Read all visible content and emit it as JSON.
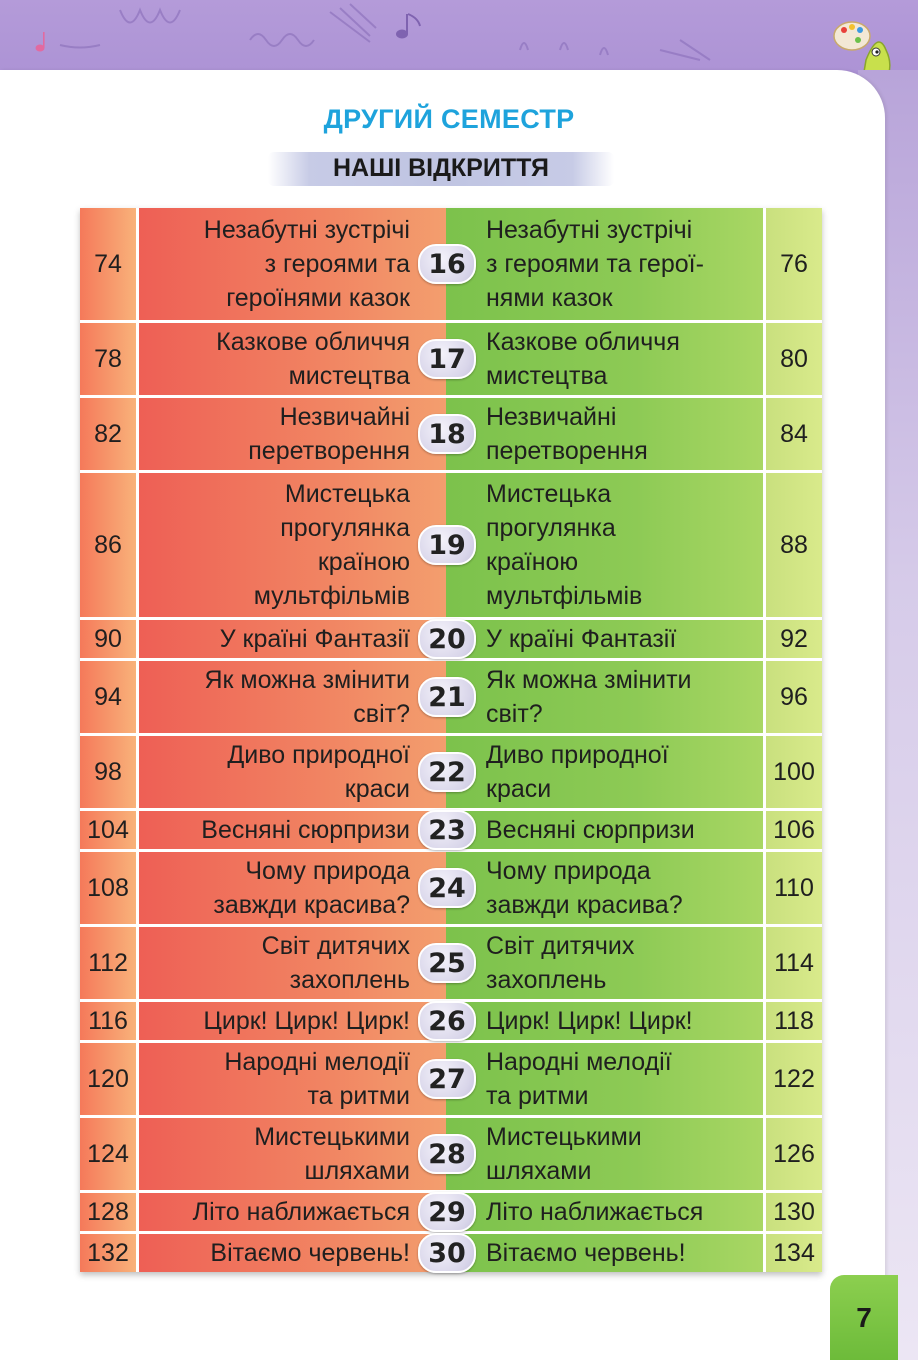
{
  "header": {
    "semester": "ДРУГИЙ СЕМЕСТР",
    "section": "НАШІ ВІДКРИТТЯ"
  },
  "rows": [
    {
      "left_page": "74",
      "left_title": "Незабутні зустрічі\nз героями та\nгероїнями казок",
      "num": "16",
      "right_title": "Незабутні зустрічі\nз героями та герої-\nнями казок",
      "right_page": "76"
    },
    {
      "left_page": "78",
      "left_title": "Казкове обличчя\nмистецтва",
      "num": "17",
      "right_title": "Казкове обличчя\nмистецтва",
      "right_page": "80"
    },
    {
      "left_page": "82",
      "left_title": "Незвичайні\nперетворення",
      "num": "18",
      "right_title": "Незвичайні\nперетворення",
      "right_page": "84"
    },
    {
      "left_page": "86",
      "left_title": "Мистецька\nпрогулянка\nкраїною\nмультфільмів",
      "num": "19",
      "right_title": "Мистецька\nпрогулянка\nкраїною\nмультфільмів",
      "right_page": "88"
    },
    {
      "left_page": "90",
      "left_title": "У країні Фантазії",
      "num": "20",
      "right_title": "У країні Фантазії",
      "right_page": "92"
    },
    {
      "left_page": "94",
      "left_title": "Як можна змінити\nсвіт?",
      "num": "21",
      "right_title": "Як можна змінити\nсвіт?",
      "right_page": "96"
    },
    {
      "left_page": "98",
      "left_title": "Диво природної\nкраси",
      "num": "22",
      "right_title": "Диво природної\nкраси",
      "right_page": "100"
    },
    {
      "left_page": "104",
      "left_title": "Весняні сюрпризи",
      "num": "23",
      "right_title": "Весняні сюрпризи",
      "right_page": "106"
    },
    {
      "left_page": "108",
      "left_title": "Чому природа\nзавжди красива?",
      "num": "24",
      "right_title": "Чому природа\nзавжди красива?",
      "right_page": "110"
    },
    {
      "left_page": "112",
      "left_title": "Світ дитячих\nзахоплень",
      "num": "25",
      "right_title": "Світ дитячих\nзахоплень",
      "right_page": "114"
    },
    {
      "left_page": "116",
      "left_title": "Цирк! Цирк! Цирк!",
      "num": "26",
      "right_title": "Цирк! Цирк! Цирк!",
      "right_page": "118"
    },
    {
      "left_page": "120",
      "left_title": "Народні мелодії\nта ритми",
      "num": "27",
      "right_title": "Народні мелодії\nта ритми",
      "right_page": "122"
    },
    {
      "left_page": "124",
      "left_title": "Мистецькими\nшляхами",
      "num": "28",
      "right_title": "Мистецькими\nшляхами",
      "right_page": "126"
    },
    {
      "left_page": "128",
      "left_title": "Літо наближається",
      "num": "29",
      "right_title": "Літо наближається",
      "right_page": "130"
    },
    {
      "left_page": "132",
      "left_title": "Вітаємо червень!",
      "num": "30",
      "right_title": "Вітаємо червень!",
      "right_page": "134"
    }
  ],
  "footer": {
    "page_number": "7"
  },
  "colors": {
    "header_band": "#b49bd9",
    "semester_text": "#1ea3dc",
    "left_column": "#ee5f55",
    "right_column": "#7cc24c",
    "page_tab": "#7cc24c"
  },
  "icons": [
    "music-note-icon",
    "palette-mascot-icon"
  ]
}
